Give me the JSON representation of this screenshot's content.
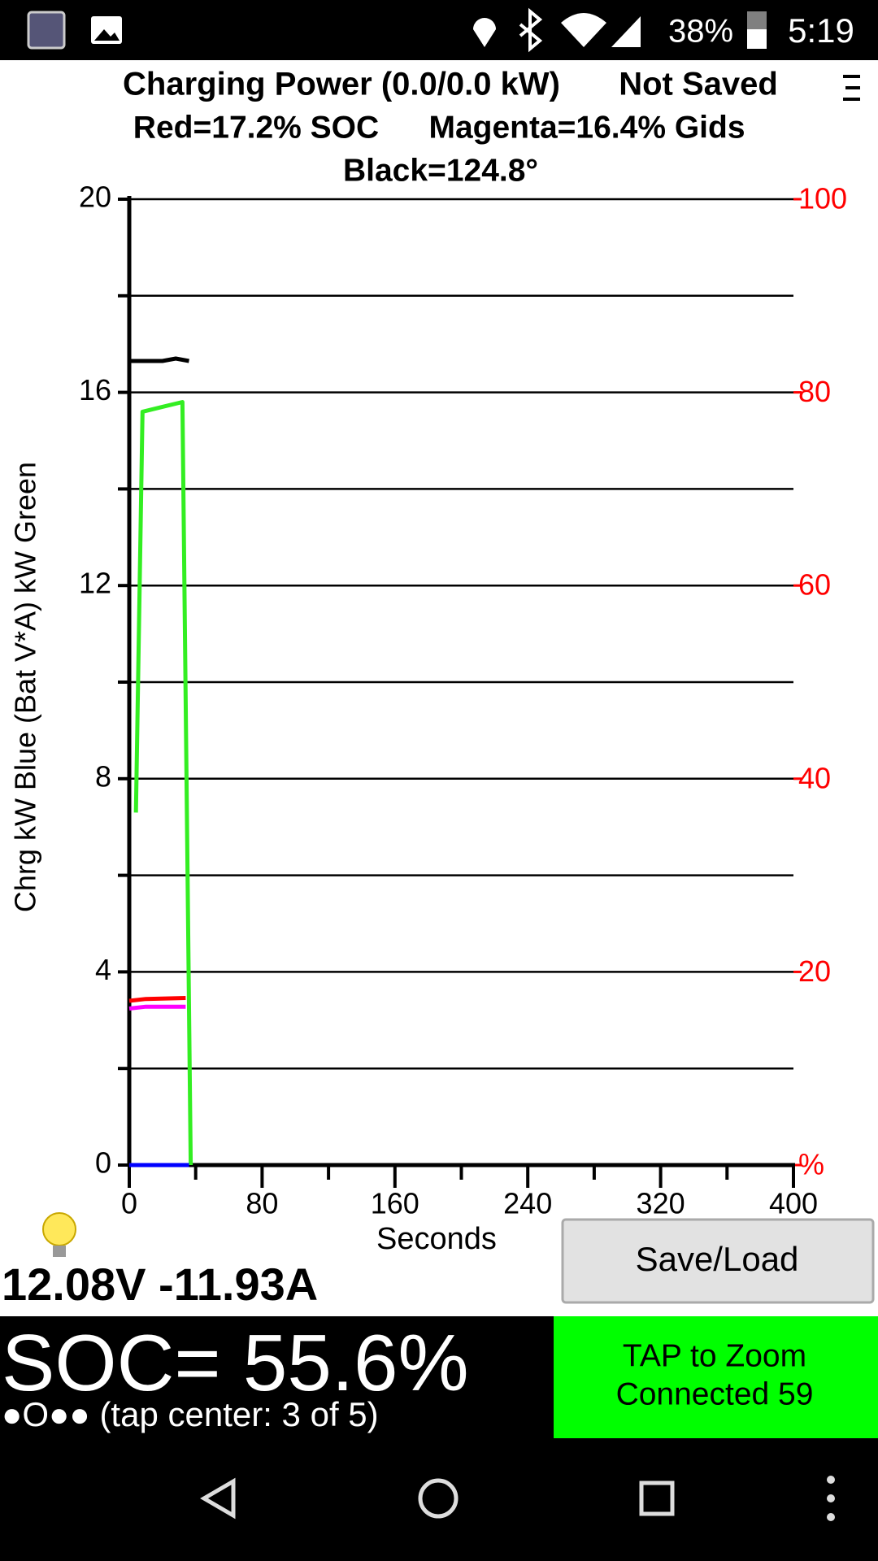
{
  "status_bar": {
    "battery": "38%",
    "time": "5:19"
  },
  "chart_data": {
    "type": "line",
    "title": "Charging Power (0.0/0.0 kW)",
    "save_status": "Not Saved",
    "subtitle_lines": [
      "Red=17.2% SOC",
      "Magenta=16.4% Gids",
      "Black=124.8°"
    ],
    "x_label": "Seconds",
    "y_label": "Chrg kW Blue  (Bat V*A) kW Green",
    "xlim": [
      0,
      400
    ],
    "xticks": [
      0,
      80,
      160,
      240,
      320,
      400
    ],
    "minor_xticks": [
      40,
      120,
      200,
      280,
      360
    ],
    "ylim": [
      0,
      20
    ],
    "yticks": [
      0,
      4,
      8,
      12,
      16,
      20
    ],
    "minor_yticks": [
      2,
      6,
      10,
      14,
      18
    ],
    "y2lim": [
      0,
      100
    ],
    "y2ticks": [
      {
        "value": 0,
        "label": "%"
      },
      20,
      40,
      60,
      80,
      100
    ],
    "y2_color": "#ff0000",
    "grid": true,
    "series": [
      {
        "color": "#000000",
        "x": [
          0,
          20,
          28,
          36
        ],
        "values": [
          16.65,
          16.65,
          16.7,
          16.65
        ]
      },
      {
        "color": "#33ee22",
        "x": [
          4,
          8,
          20,
          32,
          37
        ],
        "values": [
          7.3,
          15.6,
          15.7,
          15.8,
          0
        ]
      },
      {
        "color": "#ff0000",
        "axis": "y2",
        "x": [
          0,
          10,
          34
        ],
        "values": [
          17.0,
          17.2,
          17.3
        ]
      },
      {
        "color": "#ff00ff",
        "axis": "y2",
        "x": [
          0,
          10,
          34
        ],
        "values": [
          16.2,
          16.4,
          16.4
        ]
      },
      {
        "color": "#0000ff",
        "x": [
          0,
          36
        ],
        "values": [
          0,
          0
        ]
      }
    ]
  },
  "readout": "12.08V -11.93A",
  "save_button": "Save/Load",
  "soc": "SOC= 55.6%",
  "page_indicator": "●O●● (tap center: 3 of 5)",
  "zoom_button": {
    "line1": "TAP to Zoom",
    "line2": "Connected 59"
  }
}
